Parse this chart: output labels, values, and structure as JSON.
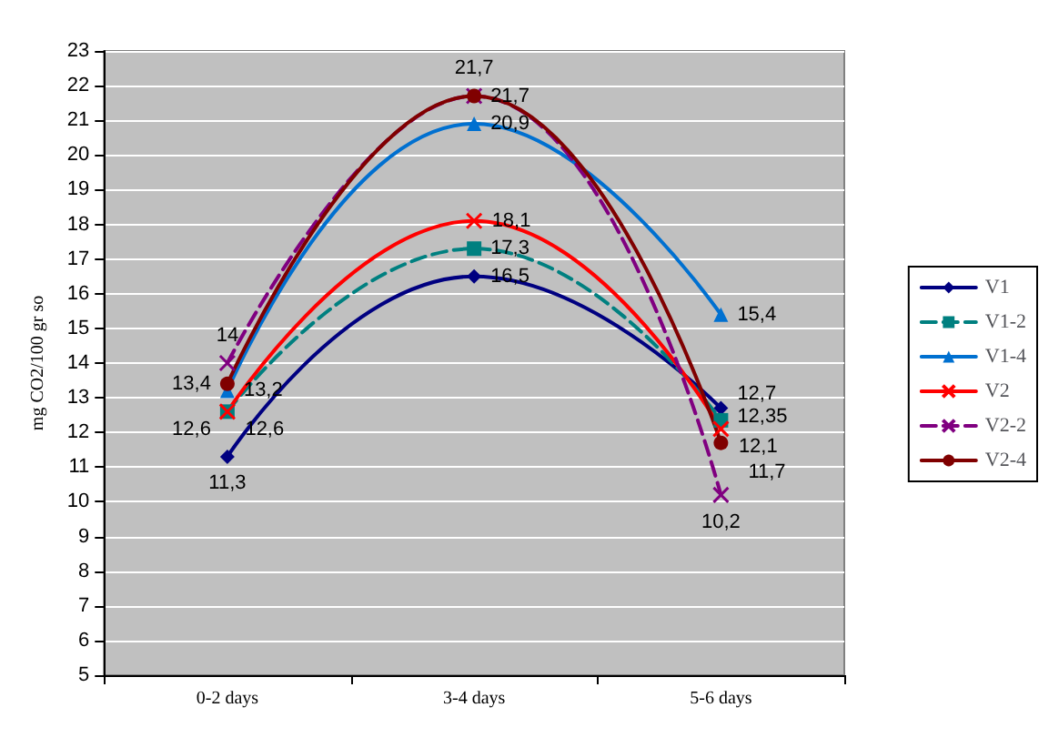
{
  "chart_data": {
    "type": "line",
    "ylabel": "mg CO2/100 gr so",
    "categories": [
      "0-2 days",
      "3-4 days",
      "5-6 days"
    ],
    "series": [
      {
        "name": "V1",
        "color": "#000080",
        "marker": "diamond",
        "line_style": "solid",
        "values": [
          11.3,
          16.5,
          12.7
        ],
        "value_labels": [
          "11,3",
          "16,5",
          "12,7"
        ]
      },
      {
        "name": "V1-2",
        "color": "#008080",
        "marker": "square",
        "line_style": "dashed",
        "values": [
          12.6,
          17.3,
          12.35
        ],
        "value_labels": [
          "12,6",
          "17,3",
          "12,35"
        ]
      },
      {
        "name": "V1-4",
        "color": "#0070d0",
        "marker": "triangle",
        "line_style": "solid",
        "values": [
          13.2,
          20.9,
          15.4
        ],
        "value_labels": [
          "13,2",
          "20,9",
          "15,4"
        ]
      },
      {
        "name": "V2",
        "color": "#ff0000",
        "marker": "cross",
        "line_style": "solid",
        "values": [
          12.6,
          18.1,
          12.1
        ],
        "value_labels": [
          "12,6",
          "18,1",
          "12,1"
        ]
      },
      {
        "name": "V2-2",
        "color": "#800080",
        "marker": "cross",
        "line_style": "dashed",
        "values": [
          14,
          21.7,
          10.2
        ],
        "value_labels": [
          "14",
          "21,7",
          "10,2"
        ]
      },
      {
        "name": "V2-4",
        "color": "#800000",
        "marker": "circle",
        "line_style": "solid",
        "values": [
          13.4,
          21.7,
          11.7
        ],
        "value_labels": [
          "13,4",
          "21,7",
          "11,7"
        ]
      }
    ],
    "ylim": [
      5,
      23
    ],
    "yticks": [
      5,
      6,
      7,
      8,
      9,
      10,
      11,
      12,
      13,
      14,
      15,
      16,
      17,
      18,
      19,
      20,
      21,
      22,
      23
    ],
    "grid": "y",
    "legend": "right"
  }
}
